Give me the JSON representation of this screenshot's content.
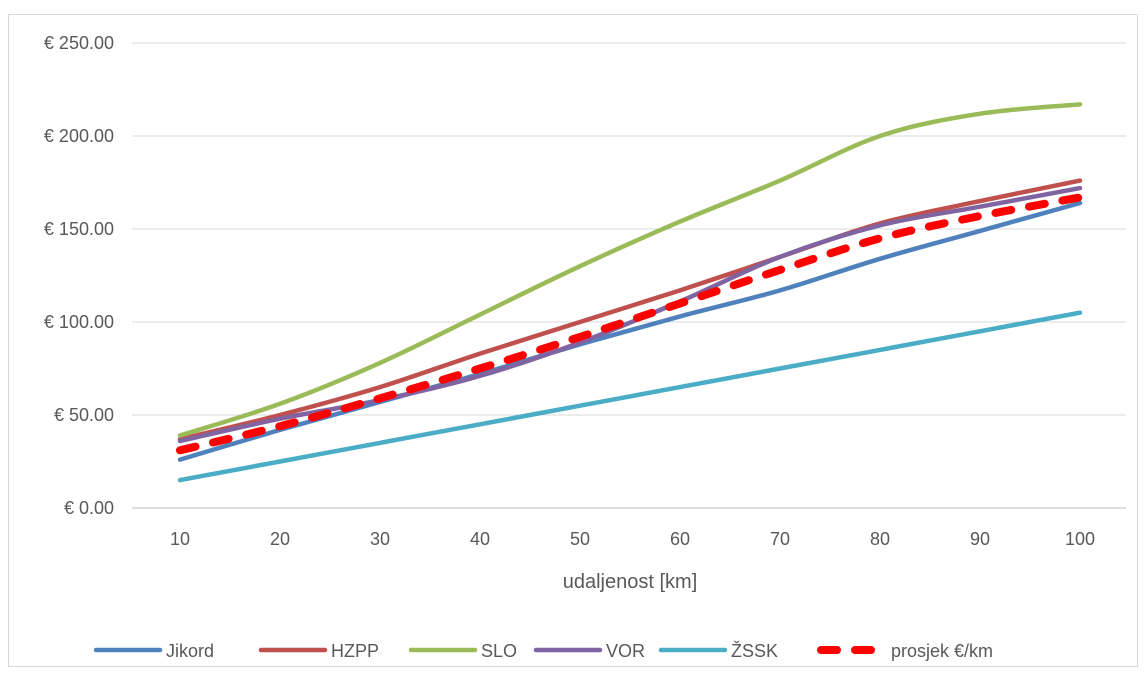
{
  "chart_data": {
    "type": "line",
    "title": "",
    "xlabel": "udaljenost [km]",
    "ylabel": "",
    "x": [
      10,
      20,
      30,
      40,
      50,
      60,
      70,
      80,
      90,
      100
    ],
    "x_tick_labels": [
      "10",
      "20",
      "30",
      "40",
      "50",
      "60",
      "70",
      "80",
      "90",
      "100"
    ],
    "ylim": [
      0,
      250
    ],
    "y_ticks": [
      0,
      50,
      100,
      150,
      200,
      250
    ],
    "y_tick_labels": [
      "€ 0.00",
      "€ 50.00",
      "€ 100.00",
      "€ 150.00",
      "€ 200.00",
      "€ 250.00"
    ],
    "grid": "horizontal",
    "legend_position": "bottom",
    "series": [
      {
        "name": "Jikord",
        "color": "#4F81BD",
        "style": "solid",
        "values": [
          26,
          42,
          57,
          72,
          88,
          103,
          117,
          134,
          149,
          164
        ]
      },
      {
        "name": "HZPP",
        "color": "#C0504D",
        "style": "solid",
        "values": [
          37,
          50,
          65,
          83,
          100,
          117,
          135,
          153,
          165,
          176
        ]
      },
      {
        "name": "SLO",
        "color": "#9BBB59",
        "style": "solid",
        "values": [
          39,
          56,
          78,
          104,
          130,
          154,
          176,
          200,
          212,
          217
        ]
      },
      {
        "name": "VOR",
        "color": "#8064A2",
        "style": "solid",
        "values": [
          36,
          48,
          58,
          71,
          89,
          111,
          135,
          152,
          162,
          172
        ]
      },
      {
        "name": "ŽSSK",
        "color": "#4BACC6",
        "style": "solid",
        "values": [
          15,
          25,
          35,
          45,
          55,
          65,
          75,
          85,
          95,
          105
        ]
      },
      {
        "name": "prosjek €/km",
        "color": "#FF0000",
        "style": "dashed",
        "values": [
          31,
          44,
          59,
          75,
          92,
          110,
          128,
          145,
          157,
          167
        ]
      }
    ]
  }
}
